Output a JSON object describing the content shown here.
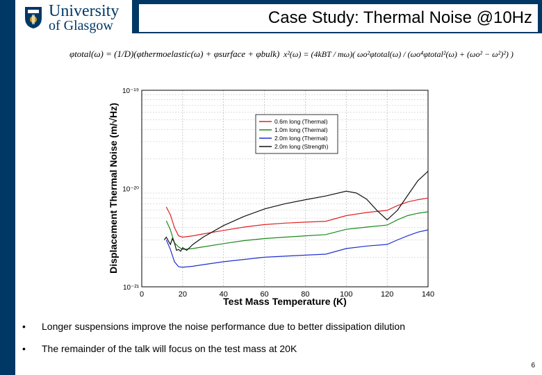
{
  "slide": {
    "title": "Case Study: Thermal Noise @10Hz",
    "page_number": "6",
    "logo": {
      "line1": "University",
      "line2": "of Glasgow"
    },
    "formula_left": "φtotal(ω) = (1/D)(φthermoelastic(ω) + φsurface + φbulk)",
    "formula_right": "x²(ω) = (4kBT / mω)( ωo²φtotal(ω) / (ωo⁴φtotal²(ω) + (ωo² − ω²)²) )",
    "bullets": [
      "Longer suspensions improve the noise performance due to better dissipation dilution",
      "The remainder of the talk will focus on the test mass at 20K"
    ],
    "bullet_marker": "•",
    "colors": {
      "brand": "#003865"
    }
  },
  "chart_data": {
    "type": "line",
    "title": "",
    "xlabel": "Test Mass Temperature (K)",
    "ylabel": "Displacement Thermal Noise (m/√Hz)",
    "xlim": [
      0,
      140
    ],
    "ylim": [
      1e-21,
      1e-19
    ],
    "yscale": "log",
    "xticks": [
      "0",
      "20",
      "40",
      "60",
      "80",
      "100",
      "120",
      "140"
    ],
    "yticks": [
      "10⁻²¹",
      "10⁻²⁰",
      "10⁻¹⁹"
    ],
    "legend_position": "top-right",
    "series": [
      {
        "name": "0.6m long (Thermal)",
        "color": "#e02020",
        "x": [
          12,
          14,
          16,
          18,
          20,
          25,
          30,
          40,
          50,
          60,
          70,
          80,
          90,
          100,
          110,
          120,
          125,
          130,
          135,
          140
        ],
        "y": [
          6.5e-21,
          5.4e-21,
          4e-21,
          3.3e-21,
          3.2e-21,
          3.3e-21,
          3.45e-21,
          3.75e-21,
          4.05e-21,
          4.3e-21,
          4.45e-21,
          4.55e-21,
          4.65e-21,
          5.3e-21,
          5.7e-21,
          6e-21,
          6.7e-21,
          7.3e-21,
          7.7e-21,
          8e-21
        ]
      },
      {
        "name": "1.0m long (Thermal)",
        "color": "#1a8a1a",
        "x": [
          12,
          14,
          16,
          18,
          20,
          25,
          30,
          40,
          50,
          60,
          70,
          80,
          90,
          100,
          110,
          120,
          125,
          130,
          135,
          140
        ],
        "y": [
          4.7e-21,
          3.8e-21,
          2.8e-21,
          2.55e-21,
          2.4e-21,
          2.45e-21,
          2.55e-21,
          2.75e-21,
          2.95e-21,
          3.1e-21,
          3.2e-21,
          3.3e-21,
          3.4e-21,
          3.85e-21,
          4.05e-21,
          4.25e-21,
          4.8e-21,
          5.3e-21,
          5.6e-21,
          5.8e-21
        ]
      },
      {
        "name": "2.0m long (Thermal)",
        "color": "#1f2fd0",
        "x": [
          12,
          14,
          16,
          18,
          20,
          25,
          30,
          40,
          50,
          60,
          70,
          80,
          90,
          100,
          110,
          120,
          125,
          130,
          135,
          140
        ],
        "y": [
          3e-21,
          2.4e-21,
          1.8e-21,
          1.6e-21,
          1.58e-21,
          1.62e-21,
          1.68e-21,
          1.8e-21,
          1.9e-21,
          2e-21,
          2.05e-21,
          2.1e-21,
          2.15e-21,
          2.45e-21,
          2.6e-21,
          2.7e-21,
          3e-21,
          3.3e-21,
          3.6e-21,
          3.8e-21
        ]
      },
      {
        "name": "2.0m long (Strength)",
        "color": "#111111",
        "x": [
          11,
          12,
          14,
          15,
          16,
          17,
          18,
          19,
          20,
          22,
          25,
          30,
          40,
          50,
          60,
          70,
          80,
          90,
          100,
          105,
          110,
          115,
          120,
          125,
          130,
          135,
          140
        ],
        "y": [
          3e-21,
          3.2e-21,
          2.7e-21,
          3.1e-21,
          2.8e-21,
          2.35e-21,
          2.4e-21,
          2.3e-21,
          2.5e-21,
          2.35e-21,
          2.7e-21,
          3.2e-21,
          4.2e-21,
          5.2e-21,
          6.2e-21,
          7e-21,
          7.7e-21,
          8.4e-21,
          9.4e-21,
          9e-21,
          7.8e-21,
          6e-21,
          4.8e-21,
          6e-21,
          8.5e-21,
          1.2e-20,
          1.5e-20
        ]
      }
    ]
  }
}
